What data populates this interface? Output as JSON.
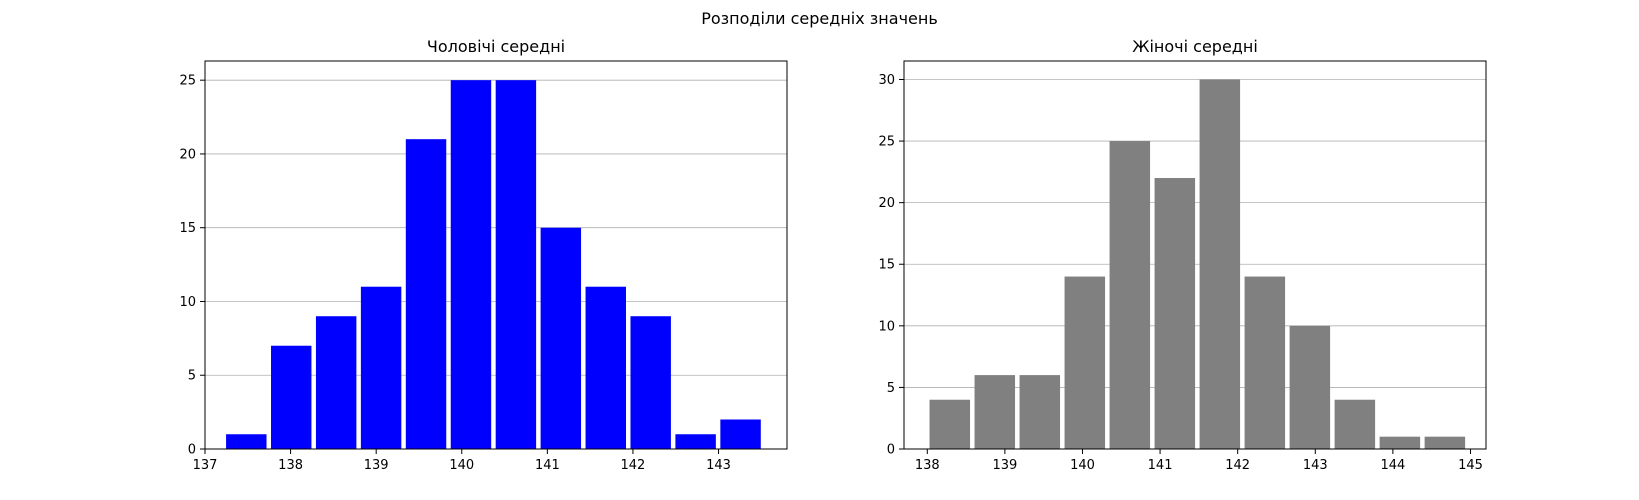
{
  "figure": {
    "suptitle": "Розподіли середніх значень"
  },
  "chart_data": [
    {
      "type": "bar",
      "title": "Чоловічі середні",
      "xlabel": "",
      "ylabel": "",
      "bar_color": "#0000ff",
      "grid_axis": "y",
      "xlim": [
        137.0,
        143.8
      ],
      "ylim": [
        0,
        26.3
      ],
      "xticks": [
        137,
        138,
        139,
        140,
        141,
        142,
        143
      ],
      "yticks": [
        0,
        5,
        10,
        15,
        20,
        25
      ],
      "bin_width": 0.525,
      "rwidth": 0.9,
      "bins": [
        {
          "x": 137.22,
          "value": 1
        },
        {
          "x": 137.745,
          "value": 7
        },
        {
          "x": 138.27,
          "value": 9
        },
        {
          "x": 138.795,
          "value": 11
        },
        {
          "x": 139.32,
          "value": 21
        },
        {
          "x": 139.845,
          "value": 25
        },
        {
          "x": 140.37,
          "value": 25
        },
        {
          "x": 140.895,
          "value": 15
        },
        {
          "x": 141.42,
          "value": 11
        },
        {
          "x": 141.945,
          "value": 9
        },
        {
          "x": 142.47,
          "value": 1
        },
        {
          "x": 142.995,
          "value": 2
        }
      ]
    },
    {
      "type": "bar",
      "title": "Жіночі середні",
      "xlabel": "",
      "ylabel": "",
      "bar_color": "#808080",
      "grid_axis": "y",
      "xlim": [
        137.7,
        145.2
      ],
      "ylim": [
        0,
        31.5
      ],
      "xticks": [
        138,
        139,
        140,
        141,
        142,
        143,
        144,
        145
      ],
      "yticks": [
        0,
        5,
        10,
        15,
        20,
        25,
        30
      ],
      "bin_width": 0.58,
      "rwidth": 0.9,
      "bins": [
        {
          "x": 138.0,
          "value": 4
        },
        {
          "x": 138.58,
          "value": 6
        },
        {
          "x": 139.16,
          "value": 6
        },
        {
          "x": 139.74,
          "value": 14
        },
        {
          "x": 140.32,
          "value": 25
        },
        {
          "x": 140.9,
          "value": 22
        },
        {
          "x": 141.48,
          "value": 30
        },
        {
          "x": 142.06,
          "value": 14
        },
        {
          "x": 142.64,
          "value": 10
        },
        {
          "x": 143.22,
          "value": 4
        },
        {
          "x": 143.8,
          "value": 1
        },
        {
          "x": 144.38,
          "value": 1
        }
      ]
    }
  ]
}
